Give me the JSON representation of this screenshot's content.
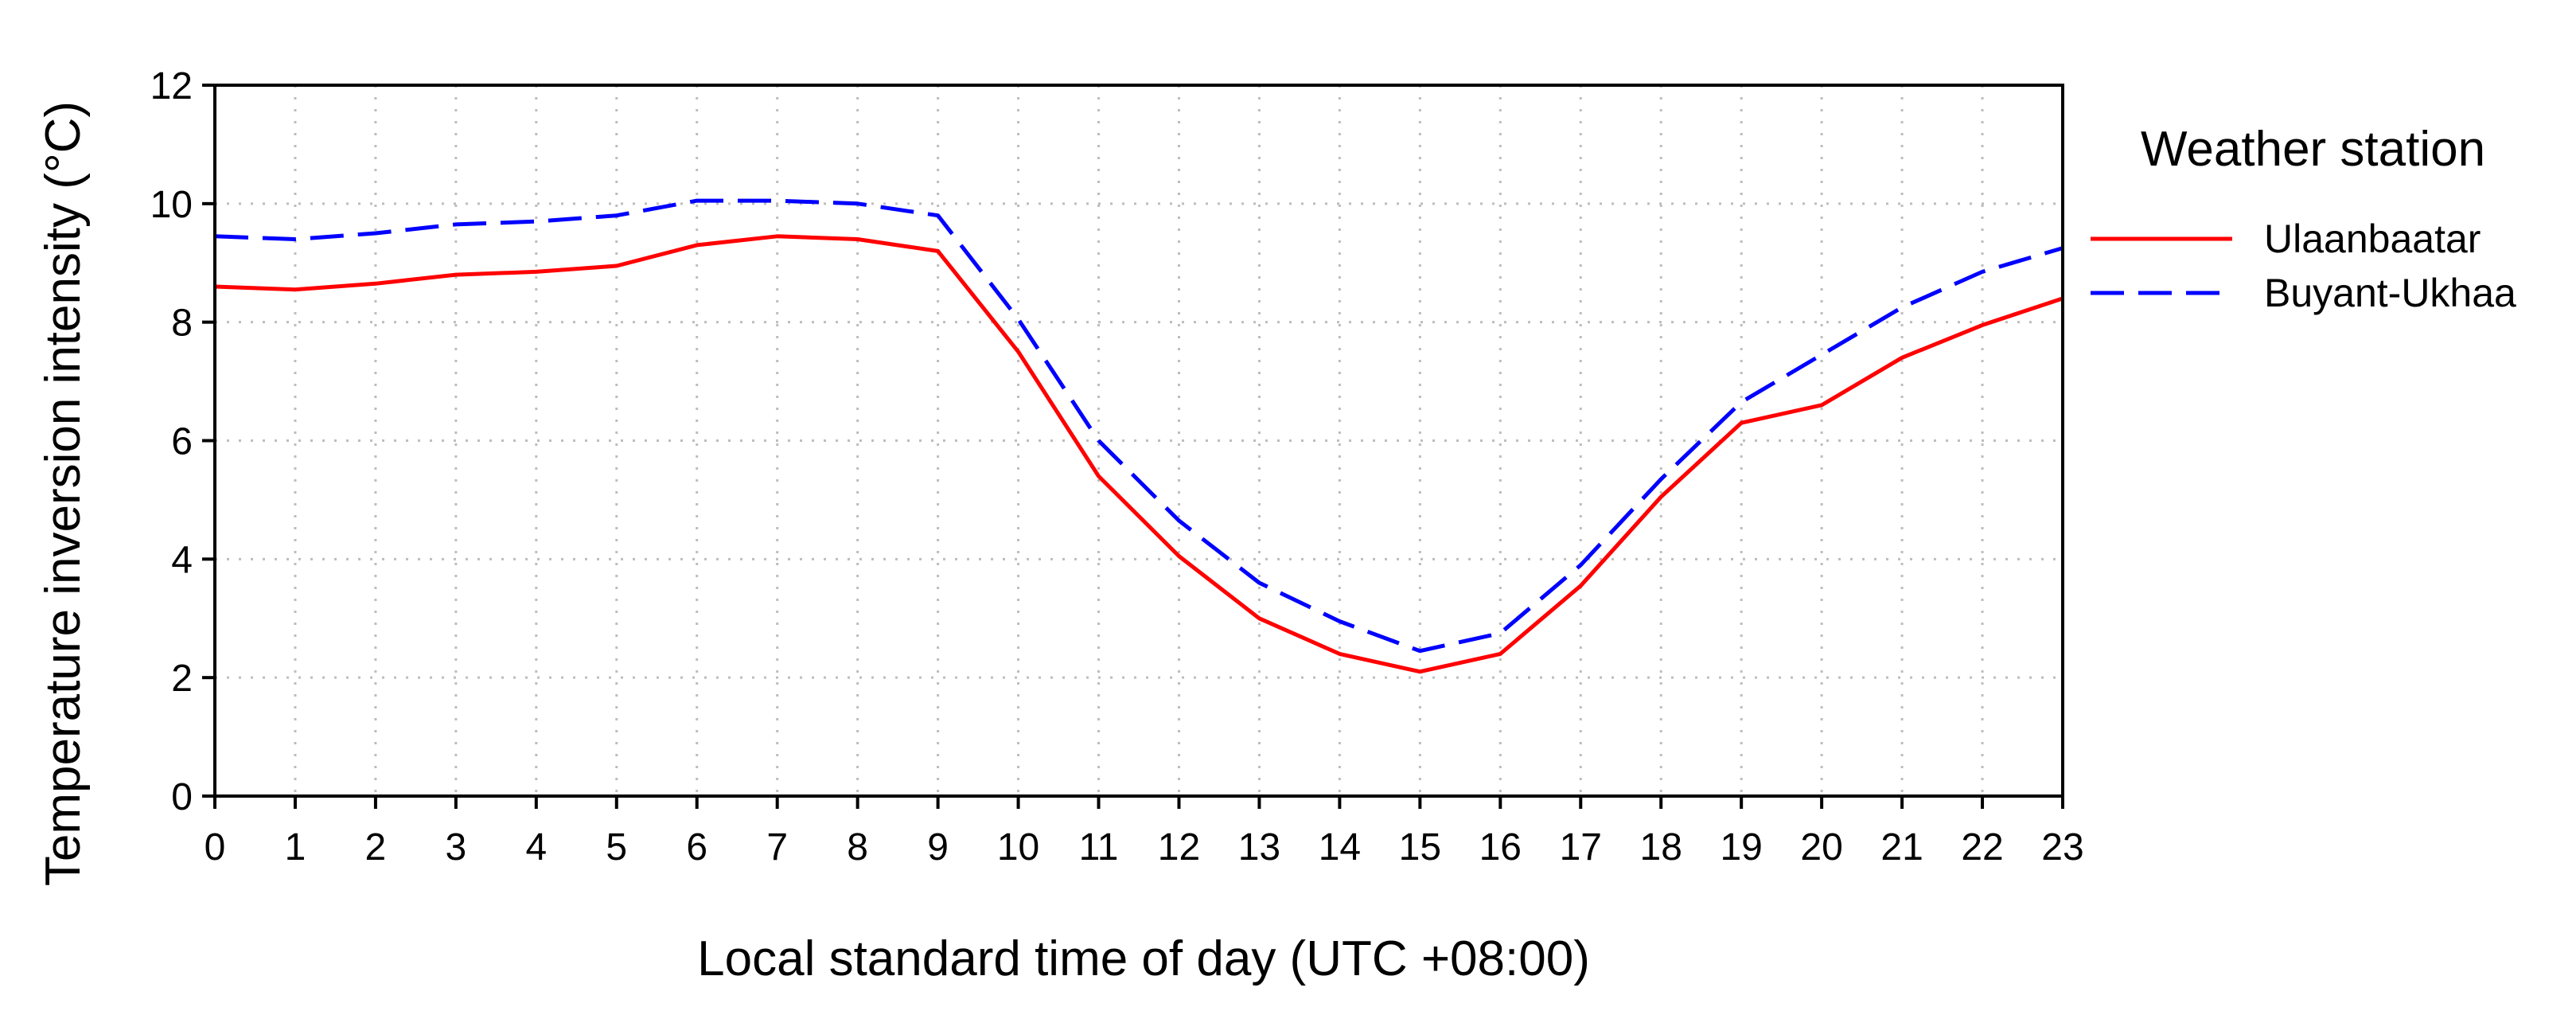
{
  "chart_data": {
    "type": "line",
    "title": "",
    "xlabel": "Local standard time of day (UTC +08:00)",
    "ylabel": "Temperature inversion intensity (°C)",
    "x": [
      0,
      1,
      2,
      3,
      4,
      5,
      6,
      7,
      8,
      9,
      10,
      11,
      12,
      13,
      14,
      15,
      16,
      17,
      18,
      19,
      20,
      21,
      22,
      23
    ],
    "xticks": [
      "0",
      "1",
      "2",
      "3",
      "4",
      "5",
      "6",
      "7",
      "8",
      "9",
      "10",
      "11",
      "12",
      "13",
      "14",
      "15",
      "16",
      "17",
      "18",
      "19",
      "20",
      "21",
      "22",
      "23"
    ],
    "yticks": [
      "0",
      "2",
      "4",
      "6",
      "8",
      "10",
      "12"
    ],
    "xlim": [
      0,
      23
    ],
    "ylim": [
      0,
      12
    ],
    "grid": true,
    "legend": {
      "title": "Weather station",
      "position": "right"
    },
    "series": [
      {
        "name": "Ulaanbaatar",
        "color": "#ff0000",
        "style": "solid",
        "values": [
          8.6,
          8.55,
          8.65,
          8.8,
          8.85,
          8.95,
          9.3,
          9.45,
          9.4,
          9.2,
          7.5,
          5.4,
          4.05,
          3.0,
          2.4,
          2.1,
          2.4,
          3.55,
          5.05,
          6.3,
          6.6,
          7.4,
          7.95,
          8.4
        ]
      },
      {
        "name": "Buyant-Ukhaa",
        "color": "#0000ff",
        "style": "dashed",
        "values": [
          9.45,
          9.4,
          9.5,
          9.65,
          9.7,
          9.8,
          10.05,
          10.05,
          10.0,
          9.8,
          8.05,
          6.0,
          4.65,
          3.6,
          2.95,
          2.45,
          2.75,
          3.9,
          5.35,
          6.65,
          7.45,
          8.25,
          8.85,
          9.25
        ]
      }
    ]
  }
}
